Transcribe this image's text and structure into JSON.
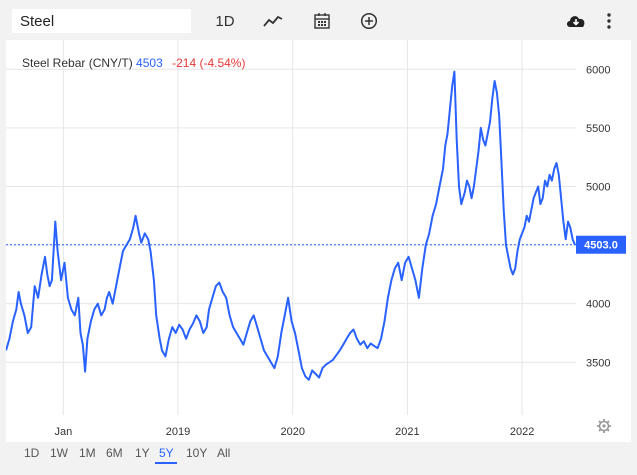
{
  "toolbar": {
    "search_value": "Steel",
    "interval_label": "1D",
    "icons": [
      "trend-line-icon",
      "calendar-icon",
      "add-circle-icon",
      "cloud-download-icon",
      "more-vertical-icon"
    ]
  },
  "legend": {
    "name": "Steel Rebar (CNY/T)",
    "last": "4503",
    "change": "-214 (-4.54%)"
  },
  "ranges": [
    "1D",
    "1W",
    "1M",
    "6M",
    "1Y",
    "5Y",
    "10Y",
    "All"
  ],
  "active_range": "5Y",
  "colors": {
    "line": "#2962ff",
    "negative": "#e53935",
    "grid": "#e6e6e6"
  },
  "chart_data": {
    "type": "line",
    "title": "Steel Rebar (CNY/T)",
    "current_value": 4503,
    "current_label": "4503.0",
    "ylim": [
      3050,
      6250
    ],
    "y_ticks": [
      6000,
      5500,
      5000,
      4500,
      4000,
      3500
    ],
    "y_tick_labels": [
      "6000",
      "5500",
      "5000",
      "4500",
      "4000",
      "3500"
    ],
    "x_range": [
      2017.5,
      2022.47
    ],
    "x_ticks": [
      2018.0,
      2019.0,
      2020.0,
      2021.0,
      2022.0
    ],
    "x_tick_labels": [
      "Jan",
      "2019",
      "2020",
      "2021",
      "2022"
    ],
    "grid": true,
    "series": [
      {
        "values": [
          [
            2017.5,
            3600
          ],
          [
            2017.53,
            3700
          ],
          [
            2017.56,
            3850
          ],
          [
            2017.59,
            3950
          ],
          [
            2017.61,
            4100
          ],
          [
            2017.63,
            4000
          ],
          [
            2017.66,
            3900
          ],
          [
            2017.69,
            3750
          ],
          [
            2017.72,
            3800
          ],
          [
            2017.75,
            4150
          ],
          [
            2017.78,
            4050
          ],
          [
            2017.81,
            4250
          ],
          [
            2017.84,
            4400
          ],
          [
            2017.86,
            4250
          ],
          [
            2017.88,
            4150
          ],
          [
            2017.9,
            4200
          ],
          [
            2017.93,
            4700
          ],
          [
            2017.95,
            4450
          ],
          [
            2017.98,
            4200
          ],
          [
            2018.01,
            4350
          ],
          [
            2018.04,
            4050
          ],
          [
            2018.07,
            3950
          ],
          [
            2018.1,
            3900
          ],
          [
            2018.13,
            4050
          ],
          [
            2018.15,
            3750
          ],
          [
            2018.17,
            3650
          ],
          [
            2018.19,
            3420
          ],
          [
            2018.21,
            3700
          ],
          [
            2018.24,
            3850
          ],
          [
            2018.27,
            3950
          ],
          [
            2018.3,
            4000
          ],
          [
            2018.33,
            3900
          ],
          [
            2018.36,
            3950
          ],
          [
            2018.38,
            4050
          ],
          [
            2018.4,
            4100
          ],
          [
            2018.43,
            4000
          ],
          [
            2018.46,
            4150
          ],
          [
            2018.49,
            4300
          ],
          [
            2018.52,
            4450
          ],
          [
            2018.55,
            4500
          ],
          [
            2018.58,
            4550
          ],
          [
            2018.61,
            4650
          ],
          [
            2018.63,
            4750
          ],
          [
            2018.66,
            4600
          ],
          [
            2018.68,
            4520
          ],
          [
            2018.71,
            4600
          ],
          [
            2018.74,
            4550
          ],
          [
            2018.76,
            4450
          ],
          [
            2018.79,
            4200
          ],
          [
            2018.81,
            3900
          ],
          [
            2018.84,
            3700
          ],
          [
            2018.86,
            3600
          ],
          [
            2018.89,
            3550
          ],
          [
            2018.92,
            3700
          ],
          [
            2018.95,
            3800
          ],
          [
            2018.98,
            3750
          ],
          [
            2019.01,
            3820
          ],
          [
            2019.04,
            3780
          ],
          [
            2019.07,
            3700
          ],
          [
            2019.1,
            3780
          ],
          [
            2019.13,
            3830
          ],
          [
            2019.16,
            3900
          ],
          [
            2019.19,
            3850
          ],
          [
            2019.22,
            3750
          ],
          [
            2019.25,
            3800
          ],
          [
            2019.27,
            3950
          ],
          [
            2019.3,
            4050
          ],
          [
            2019.33,
            4150
          ],
          [
            2019.36,
            4180
          ],
          [
            2019.39,
            4100
          ],
          [
            2019.42,
            4050
          ],
          [
            2019.45,
            3900
          ],
          [
            2019.48,
            3800
          ],
          [
            2019.51,
            3750
          ],
          [
            2019.54,
            3700
          ],
          [
            2019.57,
            3650
          ],
          [
            2019.6,
            3750
          ],
          [
            2019.63,
            3850
          ],
          [
            2019.66,
            3900
          ],
          [
            2019.69,
            3800
          ],
          [
            2019.72,
            3700
          ],
          [
            2019.75,
            3600
          ],
          [
            2019.78,
            3550
          ],
          [
            2019.81,
            3500
          ],
          [
            2019.84,
            3450
          ],
          [
            2019.87,
            3550
          ],
          [
            2019.9,
            3750
          ],
          [
            2019.93,
            3900
          ],
          [
            2019.96,
            4050
          ],
          [
            2019.99,
            3850
          ],
          [
            2020.02,
            3750
          ],
          [
            2020.05,
            3600
          ],
          [
            2020.08,
            3450
          ],
          [
            2020.11,
            3380
          ],
          [
            2020.14,
            3350
          ],
          [
            2020.17,
            3430
          ],
          [
            2020.2,
            3400
          ],
          [
            2020.23,
            3370
          ],
          [
            2020.26,
            3450
          ],
          [
            2020.29,
            3480
          ],
          [
            2020.32,
            3500
          ],
          [
            2020.35,
            3520
          ],
          [
            2020.38,
            3560
          ],
          [
            2020.41,
            3600
          ],
          [
            2020.44,
            3650
          ],
          [
            2020.47,
            3700
          ],
          [
            2020.5,
            3750
          ],
          [
            2020.53,
            3780
          ],
          [
            2020.56,
            3700
          ],
          [
            2020.59,
            3650
          ],
          [
            2020.62,
            3680
          ],
          [
            2020.65,
            3620
          ],
          [
            2020.68,
            3660
          ],
          [
            2020.71,
            3640
          ],
          [
            2020.74,
            3620
          ],
          [
            2020.77,
            3700
          ],
          [
            2020.8,
            3850
          ],
          [
            2020.83,
            4050
          ],
          [
            2020.86,
            4200
          ],
          [
            2020.89,
            4300
          ],
          [
            2020.92,
            4350
          ],
          [
            2020.95,
            4200
          ],
          [
            2020.98,
            4350
          ],
          [
            2021.01,
            4400
          ],
          [
            2021.04,
            4300
          ],
          [
            2021.07,
            4200
          ],
          [
            2021.1,
            4050
          ],
          [
            2021.13,
            4300
          ],
          [
            2021.16,
            4500
          ],
          [
            2021.19,
            4600
          ],
          [
            2021.22,
            4750
          ],
          [
            2021.25,
            4850
          ],
          [
            2021.28,
            5000
          ],
          [
            2021.31,
            5150
          ],
          [
            2021.33,
            5350
          ],
          [
            2021.35,
            5450
          ],
          [
            2021.37,
            5650
          ],
          [
            2021.39,
            5850
          ],
          [
            2021.41,
            5980
          ],
          [
            2021.43,
            5400
          ],
          [
            2021.45,
            5000
          ],
          [
            2021.47,
            4850
          ],
          [
            2021.5,
            4950
          ],
          [
            2021.52,
            5050
          ],
          [
            2021.54,
            5000
          ],
          [
            2021.56,
            4900
          ],
          [
            2021.58,
            5000
          ],
          [
            2021.6,
            5150
          ],
          [
            2021.62,
            5300
          ],
          [
            2021.64,
            5500
          ],
          [
            2021.66,
            5400
          ],
          [
            2021.68,
            5350
          ],
          [
            2021.7,
            5450
          ],
          [
            2021.72,
            5550
          ],
          [
            2021.74,
            5750
          ],
          [
            2021.76,
            5900
          ],
          [
            2021.78,
            5800
          ],
          [
            2021.8,
            5600
          ],
          [
            2021.82,
            5200
          ],
          [
            2021.84,
            4800
          ],
          [
            2021.86,
            4500
          ],
          [
            2021.88,
            4400
          ],
          [
            2021.9,
            4300
          ],
          [
            2021.92,
            4250
          ],
          [
            2021.94,
            4300
          ],
          [
            2021.96,
            4450
          ],
          [
            2021.98,
            4550
          ],
          [
            2022.0,
            4600
          ],
          [
            2022.02,
            4650
          ],
          [
            2022.04,
            4750
          ],
          [
            2022.06,
            4700
          ],
          [
            2022.08,
            4800
          ],
          [
            2022.1,
            4900
          ],
          [
            2022.12,
            4950
          ],
          [
            2022.14,
            5000
          ],
          [
            2022.16,
            4850
          ],
          [
            2022.18,
            4900
          ],
          [
            2022.2,
            5050
          ],
          [
            2022.22,
            5000
          ],
          [
            2022.24,
            5100
          ],
          [
            2022.26,
            5050
          ],
          [
            2022.28,
            5150
          ],
          [
            2022.3,
            5200
          ],
          [
            2022.32,
            5100
          ],
          [
            2022.34,
            4900
          ],
          [
            2022.36,
            4700
          ],
          [
            2022.38,
            4550
          ],
          [
            2022.4,
            4700
          ],
          [
            2022.42,
            4650
          ],
          [
            2022.44,
            4550
          ],
          [
            2022.46,
            4503
          ]
        ]
      }
    ]
  }
}
